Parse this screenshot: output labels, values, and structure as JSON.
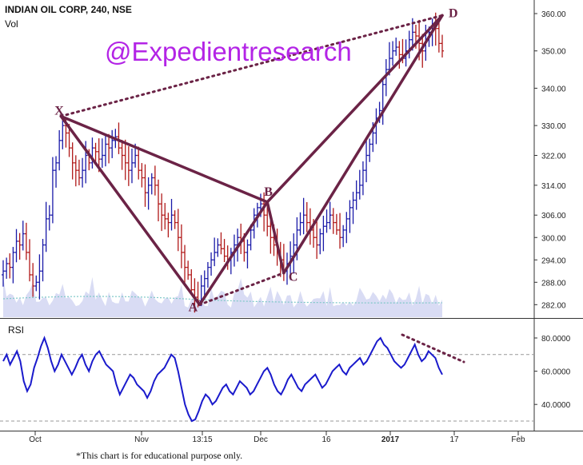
{
  "header": {
    "title": "INDIAN OIL CORP, 240, NSE",
    "sub": "Vol"
  },
  "watermark": "@Expedientresearch",
  "footnote": "*This chart is for educational purpose only.",
  "rsi_label": "RSI",
  "colors": {
    "up_bar": "#1a1aa8",
    "down_bar": "#b01818",
    "pattern": "#6b2346",
    "rsi_line": "#1a1acc",
    "volume": "#c9cdf0",
    "watermark": "#b324e6"
  },
  "chart_data": [
    {
      "type": "ohlc",
      "title": "INDIAN OIL CORP, 240, NSE",
      "ylim": [
        278,
        362
      ],
      "y_ticks": [
        "360.00",
        "350.00",
        "340.00",
        "330.00",
        "322.00",
        "314.00",
        "306.00",
        "300.00",
        "294.00",
        "288.00",
        "282.00"
      ],
      "x_labels": [
        "Oct",
        "Nov",
        "13:15",
        "Dec",
        "16",
        "2017",
        "17",
        "Feb"
      ],
      "closes": [
        291,
        293,
        292,
        296,
        299,
        298,
        301,
        296,
        290,
        287,
        288,
        291,
        298,
        305,
        306,
        318,
        320,
        326,
        330,
        328,
        324,
        320,
        318,
        316,
        318,
        322,
        320,
        324,
        323,
        321,
        322,
        325,
        324,
        326,
        327,
        324,
        322,
        320,
        318,
        320,
        322,
        318,
        316,
        312,
        314,
        316,
        314,
        309,
        306,
        305,
        304,
        306,
        304,
        300,
        296,
        292,
        290,
        286,
        284,
        283,
        287,
        289,
        292,
        294,
        296,
        298,
        297,
        295,
        294,
        296,
        298,
        300,
        299,
        296,
        298,
        302,
        306,
        308,
        309,
        306,
        303,
        300,
        298,
        296,
        294,
        291,
        293,
        295,
        298,
        302,
        304,
        306,
        304,
        302,
        300,
        298,
        301,
        303,
        304,
        306,
        304,
        302,
        300,
        302,
        305,
        308,
        310,
        312,
        314,
        318,
        322,
        325,
        328,
        332,
        334,
        341,
        345,
        348,
        350,
        351,
        349,
        348,
        350,
        353,
        355,
        354,
        352,
        350,
        353,
        355,
        357,
        356,
        352,
        350
      ],
      "pattern_points": [
        {
          "label": "X",
          "value": 332.5
        },
        {
          "label": "A",
          "value": 282
        },
        {
          "label": "B",
          "value": 309.5
        },
        {
          "label": "C",
          "value": 290.5
        },
        {
          "label": "D",
          "value": 359.5
        }
      ]
    },
    {
      "type": "line",
      "title": "RSI",
      "ylim": [
        28,
        85
      ],
      "y_ticks": [
        "80.0000",
        "60.0000",
        "40.0000"
      ],
      "guide_levels": [
        70,
        30
      ],
      "values": [
        66,
        70,
        64,
        68,
        72,
        66,
        54,
        48,
        52,
        62,
        68,
        75,
        80,
        74,
        66,
        60,
        64,
        70,
        66,
        62,
        58,
        62,
        67,
        70,
        64,
        60,
        66,
        70,
        72,
        68,
        64,
        62,
        60,
        52,
        46,
        50,
        54,
        58,
        56,
        52,
        50,
        48,
        44,
        48,
        54,
        58,
        60,
        62,
        66,
        70,
        68,
        60,
        50,
        40,
        34,
        30,
        31,
        36,
        42,
        46,
        44,
        40,
        42,
        46,
        50,
        52,
        48,
        46,
        50,
        54,
        52,
        50,
        46,
        48,
        52,
        56,
        60,
        62,
        58,
        52,
        48,
        46,
        50,
        55,
        58,
        54,
        50,
        48,
        52,
        54,
        56,
        58,
        54,
        50,
        52,
        56,
        60,
        62,
        64,
        60,
        58,
        62,
        64,
        66,
        68,
        64,
        66,
        70,
        74,
        78,
        80,
        76,
        74,
        70,
        66,
        64,
        62,
        64,
        68,
        72,
        76,
        70,
        66,
        68,
        72,
        70,
        68,
        62,
        58
      ]
    }
  ]
}
